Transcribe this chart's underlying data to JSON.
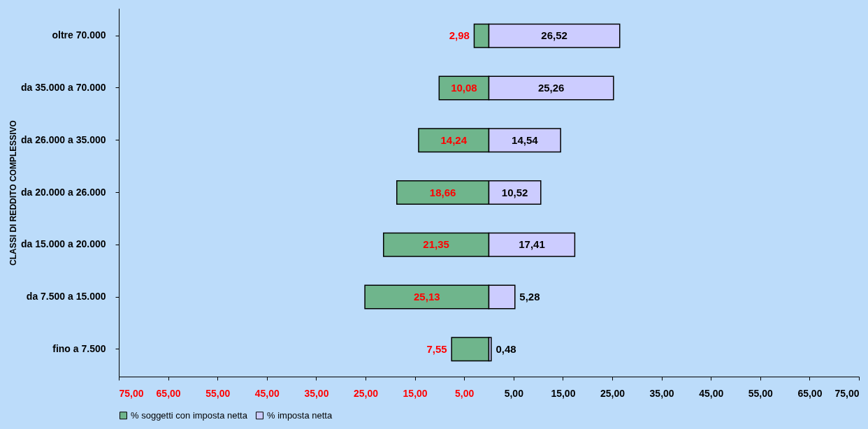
{
  "chart_data": {
    "type": "bar",
    "orientation": "horizontal",
    "ylabel": "CLASSI DI REDDITO COMPLESSIVO",
    "categories": [
      "oltre 70.000",
      "da 35.000 a 70.000",
      "da 26.000 a 35.000",
      "da 20.000 a 26.000",
      "da 15.000 a 20.000",
      "da 7.500 a 15.000",
      "fino a 7.500"
    ],
    "series": [
      {
        "name": "% soggetti con imposta netta",
        "color": "#6fb58c",
        "values": [
          2.98,
          10.08,
          14.24,
          18.66,
          21.35,
          25.13,
          7.55
        ],
        "base": [
          -2.98,
          -10.08,
          -14.24,
          -18.66,
          -21.35,
          -25.13,
          -7.55
        ],
        "value_labels": [
          "2,98",
          "10,08",
          "14,24",
          "18,66",
          "21,35",
          "25,13",
          "7,55"
        ]
      },
      {
        "name": "% imposta netta",
        "color": "#ccccff",
        "values": [
          26.52,
          25.26,
          14.54,
          10.52,
          17.41,
          5.28,
          0.48
        ],
        "value_labels": [
          "26,52",
          "25,26",
          "14,54",
          "10,52",
          "17,41",
          "5,28",
          "0,48"
        ]
      }
    ],
    "xlim": [
      -75,
      75
    ],
    "xticks": [
      {
        "value": -75,
        "label": "75,00"
      },
      {
        "value": -65,
        "label": "65,00"
      },
      {
        "value": -55,
        "label": "55,00"
      },
      {
        "value": -45,
        "label": "45,00"
      },
      {
        "value": -35,
        "label": "35,00"
      },
      {
        "value": -25,
        "label": "25,00"
      },
      {
        "value": -15,
        "label": "15,00"
      },
      {
        "value": -5,
        "label": "5,00"
      },
      {
        "value": 5,
        "label": "5,00"
      },
      {
        "value": 15,
        "label": "15,00"
      },
      {
        "value": 25,
        "label": "25,00"
      },
      {
        "value": 35,
        "label": "35,00"
      },
      {
        "value": 45,
        "label": "45,00"
      },
      {
        "value": 55,
        "label": "55,00"
      },
      {
        "value": 65,
        "label": "65,00"
      },
      {
        "value": 75,
        "label": "75,00"
      }
    ],
    "grid": false,
    "legend": "bottom"
  }
}
